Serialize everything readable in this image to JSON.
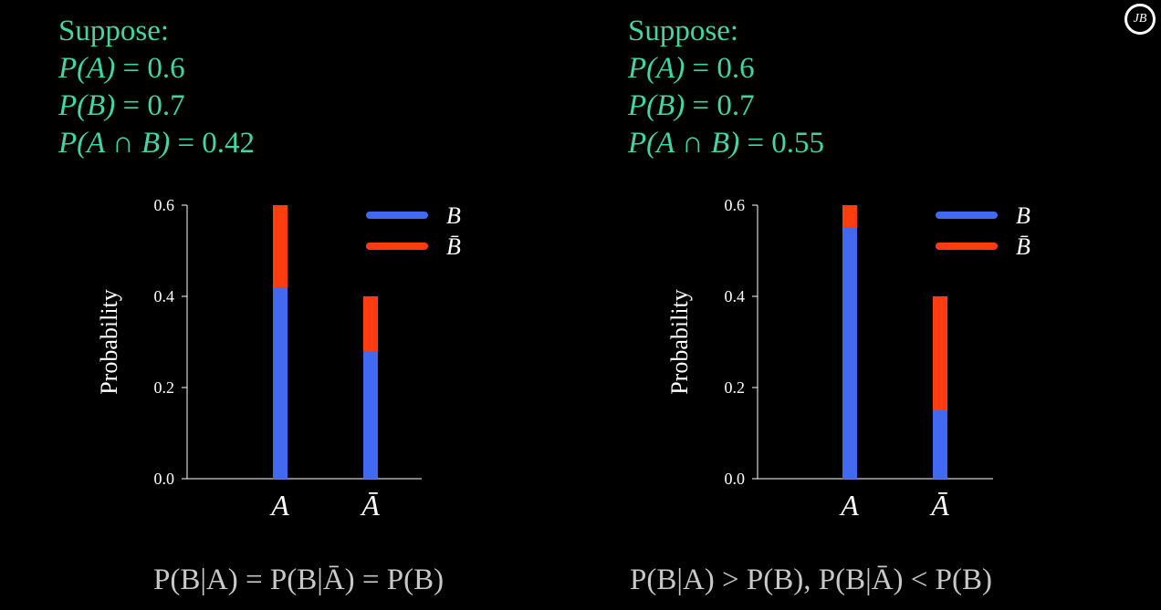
{
  "logo_text": "JB",
  "colors": {
    "assumption_text": "#3fd7a6",
    "b_series": "#4169f2",
    "not_b_series": "#ff3d0e",
    "axis": "#ffffff",
    "conclusion_text": "#c8c8c8"
  },
  "panels": [
    {
      "suppose_label": "Suppose:",
      "lines": [
        {
          "lhs": "P(A)",
          "eq": "= 0.6"
        },
        {
          "lhs": "P(B)",
          "eq": "= 0.7"
        },
        {
          "lhs": "P(A ∩ B)",
          "eq": "= 0.42"
        }
      ],
      "conclusion": "P(B|A) = P(B|Ā) = P(B)"
    },
    {
      "suppose_label": "Suppose:",
      "lines": [
        {
          "lhs": "P(A)",
          "eq": "= 0.6"
        },
        {
          "lhs": "P(B)",
          "eq": "= 0.7"
        },
        {
          "lhs": "P(A ∩ B)",
          "eq": "= 0.55"
        }
      ],
      "conclusion": "P(B|A) > P(B), P(B|Ā) < P(B)"
    }
  ],
  "chart_data": [
    {
      "type": "bar",
      "stacked": true,
      "categories": [
        "A",
        "Ā"
      ],
      "series": [
        {
          "name": "B",
          "values": [
            0.42,
            0.28
          ],
          "color": "#4169f2"
        },
        {
          "name": "B̄",
          "values": [
            0.18,
            0.12
          ],
          "color": "#ff3d0e"
        }
      ],
      "title": "",
      "xlabel": "",
      "ylabel": "Probability",
      "ylim": [
        0,
        0.6
      ],
      "yticks": [
        "0.0",
        "0.2",
        "0.4",
        "0.6"
      ],
      "ytick_values": [
        0,
        0.2,
        0.4,
        0.6
      ],
      "grid": false,
      "legend": "top-right"
    },
    {
      "type": "bar",
      "stacked": true,
      "categories": [
        "A",
        "Ā"
      ],
      "series": [
        {
          "name": "B",
          "values": [
            0.55,
            0.15
          ],
          "color": "#4169f2"
        },
        {
          "name": "B̄",
          "values": [
            0.05,
            0.25
          ],
          "color": "#ff3d0e"
        }
      ],
      "title": "",
      "xlabel": "",
      "ylabel": "Probability",
      "ylim": [
        0,
        0.6
      ],
      "yticks": [
        "0.0",
        "0.2",
        "0.4",
        "0.6"
      ],
      "ytick_values": [
        0,
        0.2,
        0.4,
        0.6
      ],
      "grid": false,
      "legend": "top-right"
    }
  ]
}
